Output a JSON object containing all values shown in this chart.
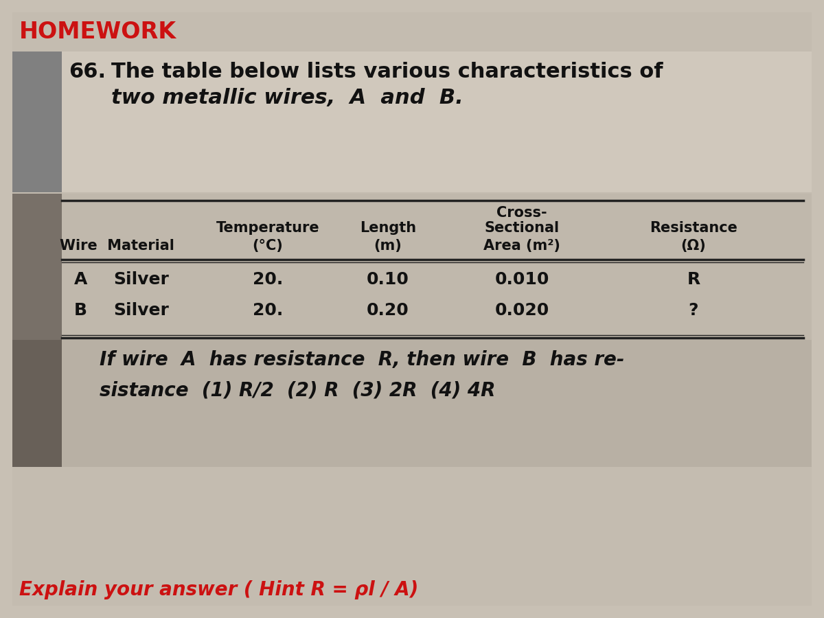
{
  "bg_color": "#c8c0b4",
  "outer_bg": "#c0b8ac",
  "inner_bg": "#b4aca0",
  "table_bg": "#c0b8b0",
  "q2_bg": "#b0a898",
  "title": "HOMEWORK",
  "title_color": "#cc1111",
  "q_number": "66.",
  "q_line1": "The table below lists various characteristics of",
  "q_line2": "two metallic wires,  A  and  B.",
  "col_header_cross": "Cross-",
  "col_header_temp": "Temperature",
  "col_header_len": "Length",
  "col_header_sect": "Sectional",
  "col_header_res": "Resistance",
  "col_wire": "Wire  Material",
  "col_temp_unit": "(°C)",
  "col_len_unit": "(m)",
  "col_area": "Area (m²)",
  "col_ohm": "(Ω)",
  "row_a": [
    "A",
    "Silver",
    "20.",
    "0.10",
    "0.010",
    "R"
  ],
  "row_b": [
    "B",
    "Silver",
    "20.",
    "0.20",
    "0.020",
    "?"
  ],
  "q2_line1": "If wire  A  has resistance  R​, then wire  B  has re-",
  "q2_line2": "sistance  (1) R/2  (2) R  (3) 2R  (4) 4R",
  "hint": "Explain your answer ( Hint R = ρl / A)",
  "hint_color": "#cc1111",
  "text_color": "#111111"
}
